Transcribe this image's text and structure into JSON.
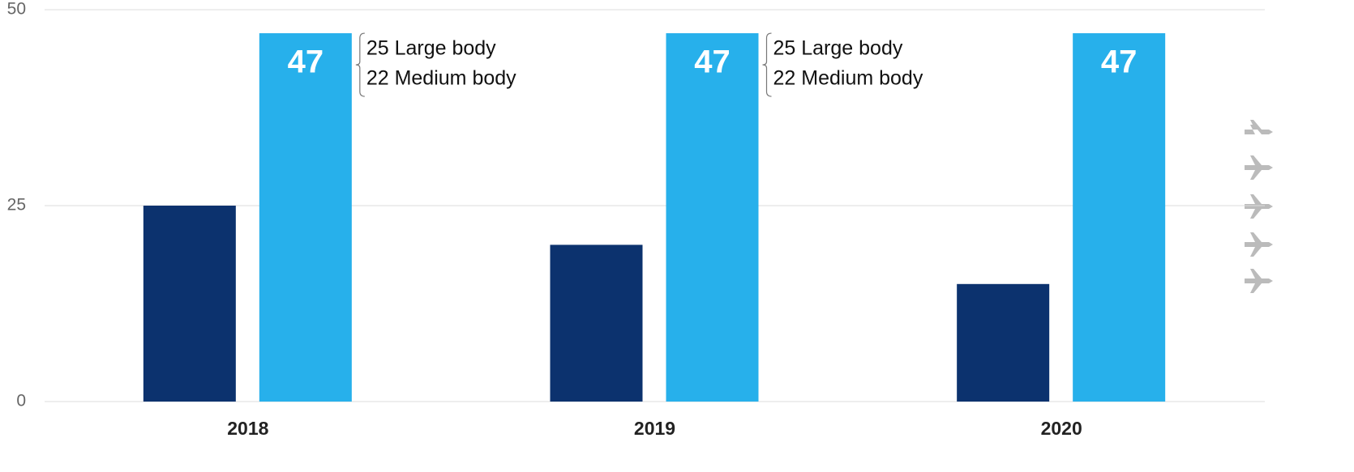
{
  "chart_data": {
    "type": "bar",
    "categories": [
      "2018",
      "2019",
      "2020"
    ],
    "series": [
      {
        "color": "#0c326e",
        "values": [
          25,
          20,
          15
        ]
      },
      {
        "color": "#27b0eb",
        "values": [
          47,
          47,
          47
        ]
      }
    ],
    "annotations": [
      [
        "25 Large body",
        "22 Medium body"
      ],
      [
        "25 Large body",
        "22 Medium body"
      ]
    ],
    "ylim": [
      0,
      50
    ],
    "yticks": [
      0,
      25,
      50
    ],
    "grid": true
  }
}
